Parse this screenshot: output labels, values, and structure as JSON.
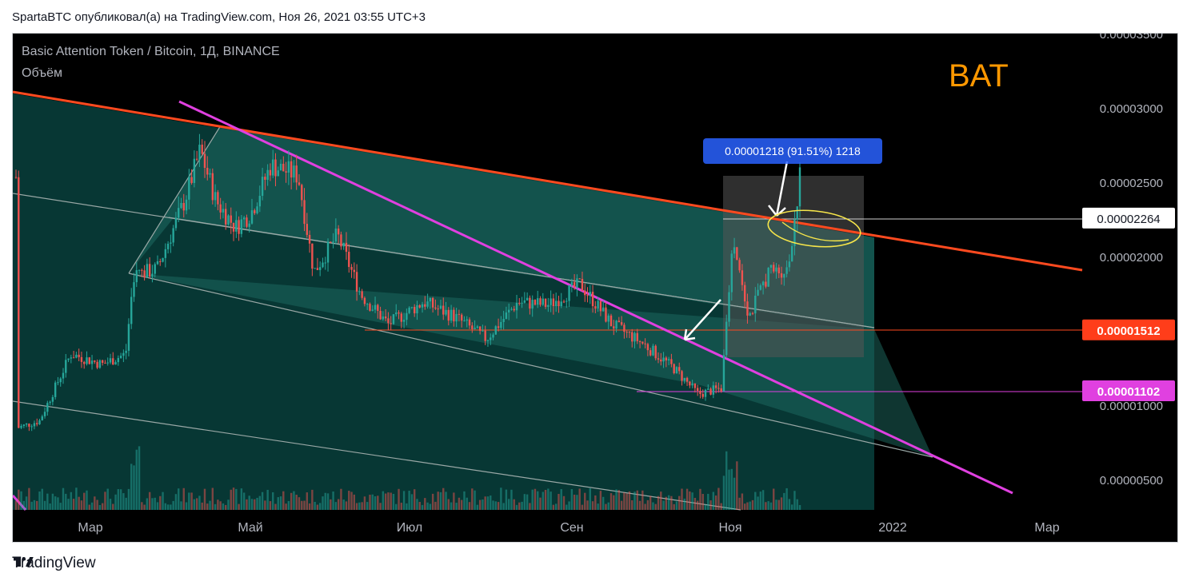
{
  "header": {
    "publish_line": "SpartaBTC опубликовал(а) на TradingView.com, Ноя 26, 2021 03:55 UTC+3"
  },
  "footer": {
    "brand": "TradingView",
    "logo_icon": "tradingview-logo-icon"
  },
  "colors": {
    "background": "#000000",
    "channel_fill": "#0a4a45",
    "resistance_line": "#ff4a1f",
    "pink_trendline": "#e040e0",
    "candle_up": "#26a69a",
    "candle_down": "#ef5350",
    "bat_label": "#ff9800",
    "measure_box": "#3a3a3a",
    "measure_badge": "#2962ff"
  },
  "chart_data": {
    "type": "candlestick",
    "title": "Basic Attention Token / Bitcoin, 1Д, BINANCE",
    "subtitle": "Объём",
    "annotation_ticker": "BAT",
    "y_axis_ticks": [
      "0.00003500",
      "0.00003000",
      "0.00002500",
      "0.00002000",
      "0.00001000",
      "0.00000500"
    ],
    "y_tick_values": [
      3.5e-05,
      3e-05,
      2.5e-05,
      2e-05,
      1e-05,
      5e-06
    ],
    "x_axis_ticks": [
      "Мар",
      "Май",
      "Июл",
      "Сен",
      "Ноя",
      "2022",
      "Мар"
    ],
    "price_labels": [
      {
        "text": "0.00002264",
        "value": 2.264e-05,
        "style": "white"
      },
      {
        "text": "0.00001512",
        "value": 1.512e-05,
        "style": "red"
      },
      {
        "text": "0.00001102",
        "value": 1.102e-05,
        "style": "magenta"
      }
    ],
    "measure_label": "0.00001218 (91.51%) 1218",
    "key_points": [
      {
        "date": "early Feb",
        "price": 8.5e-06
      },
      {
        "date": "early Mar",
        "price": 1.9e-05
      },
      {
        "date": "late Mar",
        "price": 2.75e-05
      },
      {
        "date": "early May",
        "price": 2.85e-05
      },
      {
        "date": "late Jul",
        "price": 1.5e-05
      },
      {
        "date": "mid Sep",
        "price": 1.8e-05
      },
      {
        "date": "late Oct",
        "price": 1.08e-05
      },
      {
        "date": "early Nov",
        "price": 2.35e-05
      },
      {
        "date": "late Nov",
        "price": 2.54e-05
      }
    ]
  }
}
